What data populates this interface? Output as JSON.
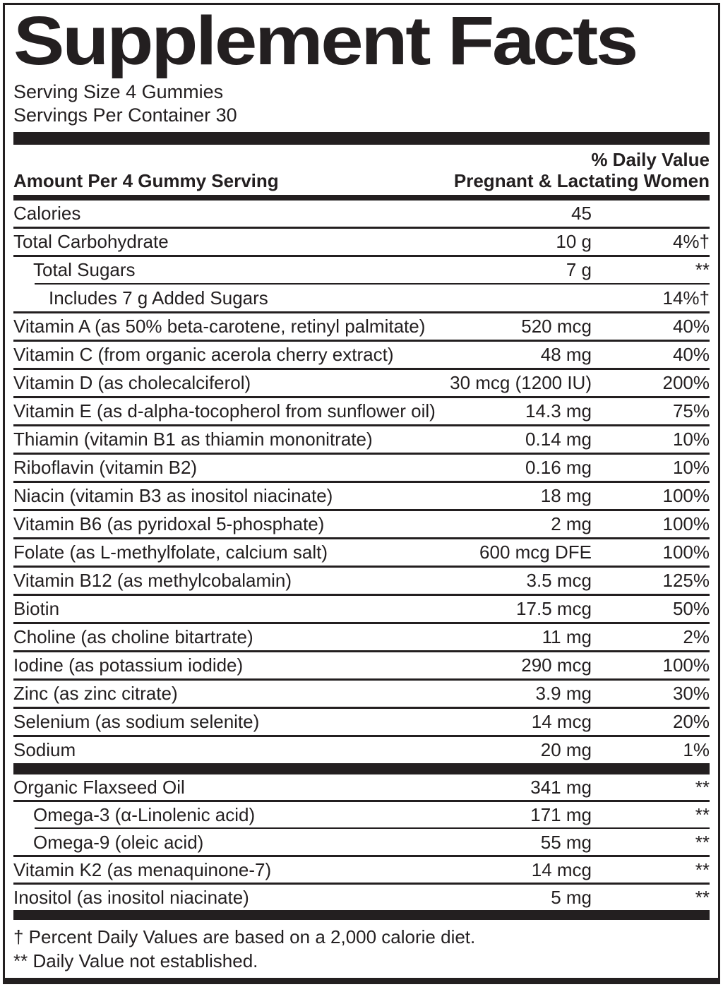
{
  "title": "Supplement Facts",
  "serving": {
    "size": "Serving Size 4 Gummies",
    "per_container": "Servings Per Container 30"
  },
  "header": {
    "amount_col": "Amount Per 4 Gummy Serving",
    "dv_line1": "% Daily Value",
    "dv_line2": "Pregnant & Lactating Women"
  },
  "main_rows": [
    {
      "label": "Calories",
      "amount": "45",
      "dv": "",
      "indent": 0,
      "rule": "full"
    },
    {
      "label": "Total Carbohydrate",
      "amount": "10 g",
      "dv": "4%†",
      "indent": 0,
      "rule": "full"
    },
    {
      "label": "Total Sugars",
      "amount": "7 g",
      "dv": "**",
      "indent": 1,
      "rule": "indent"
    },
    {
      "label": "Includes 7 g Added Sugars",
      "amount": "",
      "dv": "14%†",
      "indent": 2,
      "rule": "full"
    },
    {
      "label": "Vitamin A (as 50% beta-carotene, retinyl palmitate)",
      "amount": "520 mcg",
      "dv": "40%",
      "indent": 0,
      "rule": "full"
    },
    {
      "label": "Vitamin C (from organic acerola cherry extract)",
      "amount": "48 mg",
      "dv": "40%",
      "indent": 0,
      "rule": "full"
    },
    {
      "label": "Vitamin D (as cholecalciferol)",
      "amount": "30 mcg (1200 IU)",
      "dv": "200%",
      "indent": 0,
      "rule": "full"
    },
    {
      "label": "Vitamin E (as d-alpha-tocopherol from sunflower oil)",
      "amount": "14.3 mg",
      "dv": "75%",
      "indent": 0,
      "rule": "full"
    },
    {
      "label": "Thiamin (vitamin B1 as thiamin mononitrate)",
      "amount": "0.14 mg",
      "dv": "10%",
      "indent": 0,
      "rule": "full"
    },
    {
      "label": "Riboflavin (vitamin B2)",
      "amount": "0.16 mg",
      "dv": "10%",
      "indent": 0,
      "rule": "full"
    },
    {
      "label": "Niacin (vitamin B3 as inositol niacinate)",
      "amount": "18 mg",
      "dv": "100%",
      "indent": 0,
      "rule": "full"
    },
    {
      "label": "Vitamin B6 (as pyridoxal 5-phosphate)",
      "amount": "2 mg",
      "dv": "100%",
      "indent": 0,
      "rule": "full"
    },
    {
      "label": "Folate (as L-methylfolate, calcium salt)",
      "amount": "600 mcg DFE",
      "dv": "100%",
      "indent": 0,
      "rule": "full"
    },
    {
      "label": "Vitamin B12 (as methylcobalamin)",
      "amount": "3.5 mcg",
      "dv": "125%",
      "indent": 0,
      "rule": "full"
    },
    {
      "label": "Biotin",
      "amount": "17.5 mcg",
      "dv": "50%",
      "indent": 0,
      "rule": "full"
    },
    {
      "label": "Choline (as choline bitartrate)",
      "amount": "11 mg",
      "dv": "2%",
      "indent": 0,
      "rule": "full"
    },
    {
      "label": "Iodine (as potassium iodide)",
      "amount": "290 mcg",
      "dv": "100%",
      "indent": 0,
      "rule": "full"
    },
    {
      "label": "Zinc (as zinc citrate)",
      "amount": "3.9 mg",
      "dv": "30%",
      "indent": 0,
      "rule": "full"
    },
    {
      "label": "Selenium (as sodium selenite)",
      "amount": "14 mcg",
      "dv": "20%",
      "indent": 0,
      "rule": "full"
    },
    {
      "label": "Sodium",
      "amount": "20 mg",
      "dv": "1%",
      "indent": 0,
      "rule": "none"
    }
  ],
  "extra_rows": [
    {
      "label": "Organic Flaxseed Oil",
      "amount": "341 mg",
      "dv": "**",
      "indent": 0,
      "rule": "full"
    },
    {
      "label": "Omega-3 (α-Linolenic acid)",
      "amount": "171 mg",
      "dv": "**",
      "indent": 1,
      "rule": "indent"
    },
    {
      "label": "Omega-9 (oleic acid)",
      "amount": "55 mg",
      "dv": "**",
      "indent": 1,
      "rule": "full"
    },
    {
      "label": "Vitamin K2 (as menaquinone-7)",
      "amount": "14 mcg",
      "dv": "**",
      "indent": 0,
      "rule": "full"
    },
    {
      "label": "Inositol (as inositol niacinate)",
      "amount": "5 mg",
      "dv": "**",
      "indent": 0,
      "rule": "none"
    }
  ],
  "footnotes": {
    "dagger": "† Percent Daily Values are based on a 2,000 calorie diet.",
    "asterisks": "** Daily Value not established."
  },
  "colors": {
    "ink": "#231f20",
    "background": "#ffffff"
  }
}
